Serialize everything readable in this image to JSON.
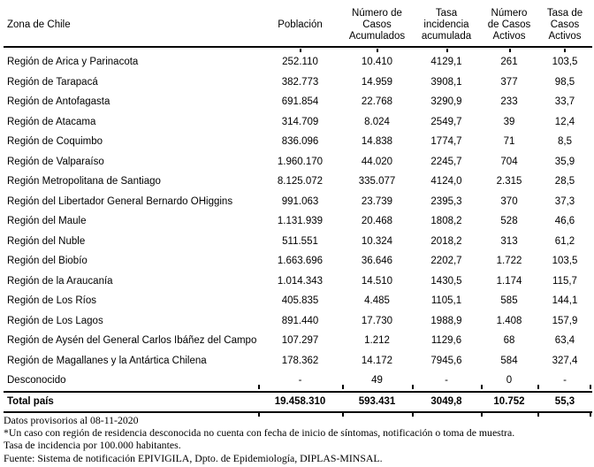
{
  "table": {
    "columns": [
      {
        "label": "Zona de Chile"
      },
      {
        "label": "Población"
      },
      {
        "label": "Número de\nCasos\nAcumulados"
      },
      {
        "label": "Tasa\nincidencia\nacumulada"
      },
      {
        "label": "Número\nde Casos\nActivos"
      },
      {
        "label": "Tasa de\nCasos\nActivos"
      }
    ],
    "rows": [
      [
        "Región de Arica y Parinacota",
        "252.110",
        "10.410",
        "4129,1",
        "261",
        "103,5"
      ],
      [
        "Región de Tarapacá",
        "382.773",
        "14.959",
        "3908,1",
        "377",
        "98,5"
      ],
      [
        "Región de Antofagasta",
        "691.854",
        "22.768",
        "3290,9",
        "233",
        "33,7"
      ],
      [
        "Región de Atacama",
        "314.709",
        "8.024",
        "2549,7",
        "39",
        "12,4"
      ],
      [
        "Región de Coquimbo",
        "836.096",
        "14.838",
        "1774,7",
        "71",
        "8,5"
      ],
      [
        "Región de Valparaíso",
        "1.960.170",
        "44.020",
        "2245,7",
        "704",
        "35,9"
      ],
      [
        "Región Metropolitana de Santiago",
        "8.125.072",
        "335.077",
        "4124,0",
        "2.315",
        "28,5"
      ],
      [
        "Región del Libertador General Bernardo OHiggins",
        "991.063",
        "23.739",
        "2395,3",
        "370",
        "37,3"
      ],
      [
        "Región del Maule",
        "1.131.939",
        "20.468",
        "1808,2",
        "528",
        "46,6"
      ],
      [
        "Región del Ñuble",
        "511.551",
        "10.324",
        "2018,2",
        "313",
        "61,2"
      ],
      [
        "Región del Biobío",
        "1.663.696",
        "36.646",
        "2202,7",
        "1.722",
        "103,5"
      ],
      [
        "Región de la Araucanía",
        "1.014.343",
        "14.510",
        "1430,5",
        "1.174",
        "115,7"
      ],
      [
        "Región de Los Ríos",
        "405.835",
        "4.485",
        "1105,1",
        "585",
        "144,1"
      ],
      [
        "Región de Los Lagos",
        "891.440",
        "17.730",
        "1988,9",
        "1.408",
        "157,9"
      ],
      [
        "Región de Aysén del General Carlos Ibáñez del Campo",
        "107.297",
        "1.212",
        "1129,6",
        "68",
        "63,4"
      ],
      [
        "Región de Magallanes y la Antártica Chilena",
        "178.362",
        "14.172",
        "7945,6",
        "584",
        "327,4"
      ],
      [
        "Desconocido",
        "-",
        "49",
        "-",
        "0",
        "-"
      ]
    ],
    "total_row": [
      "Total país",
      "19.458.310",
      "593.431",
      "3049,8",
      "10.752",
      "55,3"
    ]
  },
  "footnotes": [
    "Datos provisorios al 08-11-2020",
    "*Un caso con región de residencia desconocida no cuenta con fecha de inicio de síntomas, notificación o toma de muestra.",
    "Tasa de incidencia por 100.000 habitantes.",
    "Fuente: Sistema de notificación EPIVIGILA, Dpto. de Epidemiología, DIPLAS-MINSAL."
  ],
  "colors": {
    "text": "#000000",
    "rule": "#000000",
    "background": "#ffffff"
  }
}
